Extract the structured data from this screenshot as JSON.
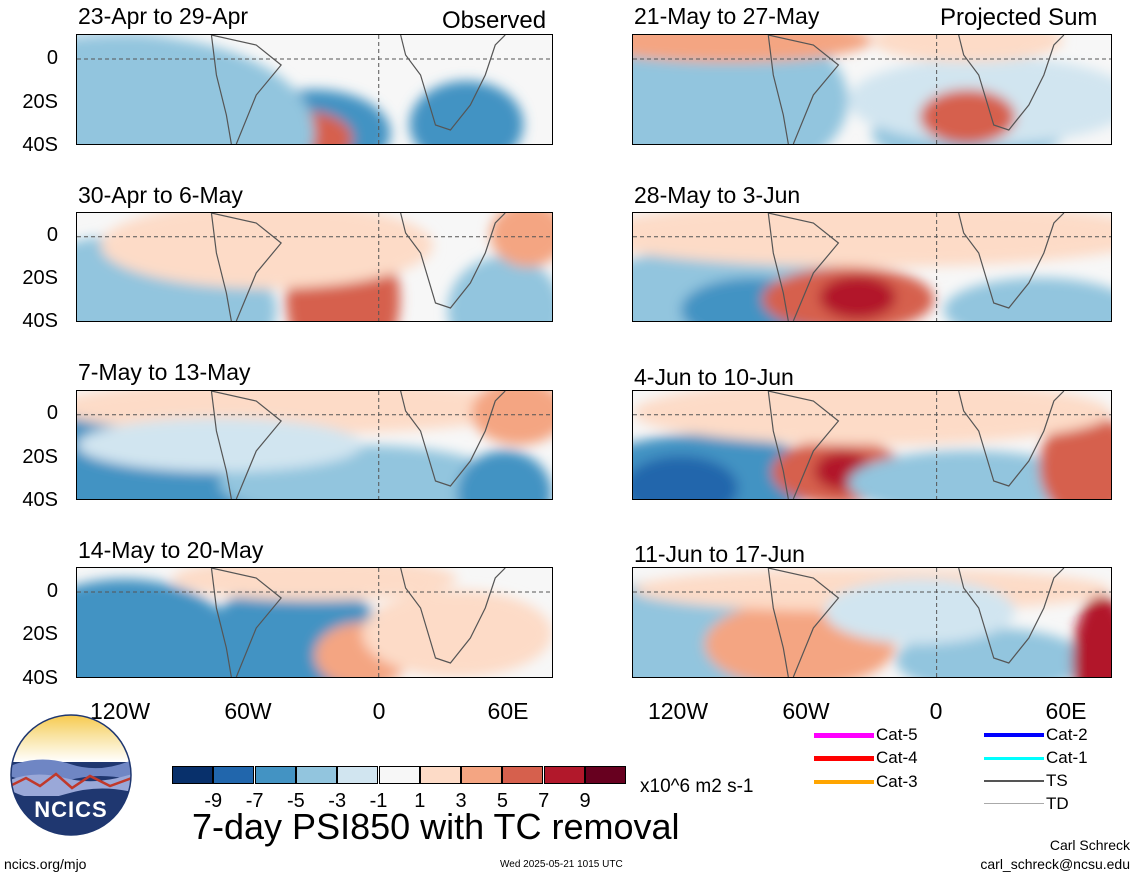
{
  "header": {
    "observed_label": "Observed",
    "projected_label": "Projected Sum"
  },
  "panels": [
    {
      "title": "23-Apr to 29-Apr"
    },
    {
      "title": "30-Apr to 6-May"
    },
    {
      "title": "7-May to 13-May"
    },
    {
      "title": "14-May to 20-May"
    },
    {
      "title": "21-May to 27-May"
    },
    {
      "title": "28-May to 3-Jun"
    },
    {
      "title": "4-Jun to 10-Jun"
    },
    {
      "title": "11-Jun to 17-Jun"
    }
  ],
  "axes": {
    "y_ticks": [
      "0",
      "20S",
      "40S"
    ],
    "x_ticks": [
      "120W",
      "60W",
      "0",
      "60E"
    ]
  },
  "colorbar": {
    "colors": [
      "#08306b",
      "#2166ac",
      "#4393c3",
      "#92c5de",
      "#d1e5f0",
      "#f7f7f7",
      "#fddbc7",
      "#f4a582",
      "#d6604d",
      "#b2182b",
      "#67001f"
    ],
    "labels": [
      "-9",
      "-7",
      "-5",
      "-3",
      "-1",
      "1",
      "3",
      "5",
      "7",
      "9"
    ],
    "units": "x10^6 m2 s-1"
  },
  "title": "7-day PSI850 with TC removal",
  "legend": [
    {
      "label": "Cat-5",
      "color": "#ff00ff"
    },
    {
      "label": "Cat-4",
      "color": "#ff0000"
    },
    {
      "label": "Cat-3",
      "color": "#ffa500"
    },
    {
      "label": "Cat-2",
      "color": "#0000ff"
    },
    {
      "label": "Cat-1",
      "color": "#00ffff"
    },
    {
      "label": "TS",
      "color": "#555555"
    },
    {
      "label": "TD",
      "color": "#aaaaaa"
    }
  ],
  "logo": {
    "text": "NCICS"
  },
  "footer": {
    "url": "ncics.org/mjo",
    "timestamp": "Wed 2025-05-21 1015 UTC",
    "author": "Carl Schreck",
    "email": "carl_schreck@ncsu.edu"
  }
}
